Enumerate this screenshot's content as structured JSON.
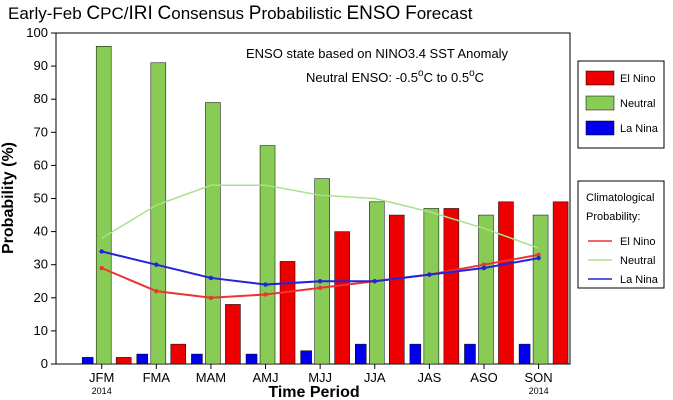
{
  "chart_data": {
    "type": "bar",
    "title_parts": [
      {
        "text": "Early-Feb ",
        "big": false
      },
      {
        "text": "C",
        "big": true
      },
      {
        "text": "PC/",
        "big": false
      },
      {
        "text": "IRI",
        "big": true
      },
      {
        "text": " ",
        "big": false
      },
      {
        "text": "C",
        "big": true
      },
      {
        "text": "onsensus ",
        "big": false
      },
      {
        "text": "P",
        "big": true
      },
      {
        "text": "robabilistic ",
        "big": false
      },
      {
        "text": "ENSO",
        "big": true
      },
      {
        "text": " ",
        "big": false
      },
      {
        "text": "F",
        "big": true
      },
      {
        "text": "orecast",
        "big": false
      }
    ],
    "xlabel": "Time Period",
    "ylabel": "Probability (%)",
    "ylim": [
      0,
      100
    ],
    "yticks": [
      0,
      10,
      20,
      30,
      40,
      50,
      60,
      70,
      80,
      90,
      100
    ],
    "categories": [
      "JFM",
      "FMA",
      "MAM",
      "AMJ",
      "MJJ",
      "JJA",
      "JAS",
      "ASO",
      "SON"
    ],
    "category_sublabels": [
      "2014",
      "",
      "",
      "",
      "",
      "",
      "",
      "",
      "2014"
    ],
    "series": [
      {
        "name": "La Nina",
        "color": "#0000ee",
        "values": [
          2,
          3,
          3,
          3,
          4,
          6,
          6,
          6,
          6
        ]
      },
      {
        "name": "Neutral",
        "color": "#88cc55",
        "values": [
          96,
          91,
          79,
          66,
          56,
          49,
          47,
          45,
          45
        ]
      },
      {
        "name": "El Nino",
        "color": "#ee0000",
        "values": [
          2,
          6,
          18,
          31,
          40,
          45,
          47,
          49,
          49
        ]
      }
    ],
    "legend_order": [
      "El Nino",
      "Neutral",
      "La Nina"
    ],
    "climatology": {
      "title_lines": [
        "Climatological",
        "Probability:"
      ],
      "series": [
        {
          "name": "El Nino",
          "color": "#ee3333",
          "values": [
            29,
            22,
            20,
            21,
            23,
            25,
            27,
            30,
            33
          ]
        },
        {
          "name": "Neutral",
          "color": "#aae08a",
          "values": [
            38,
            48,
            54,
            54,
            51,
            50,
            46,
            41,
            35
          ]
        },
        {
          "name": "La Nina",
          "color": "#2222dd",
          "values": [
            34,
            30,
            26,
            24,
            25,
            25,
            27,
            29,
            32
          ]
        }
      ]
    },
    "annotation_lines": [
      "ENSO state based on NINO3.4 SST Anomaly",
      "Neutral ENSO: -0.5",
      "C to 0.5",
      "C"
    ],
    "annotation_degree": "o",
    "grid": false
  }
}
